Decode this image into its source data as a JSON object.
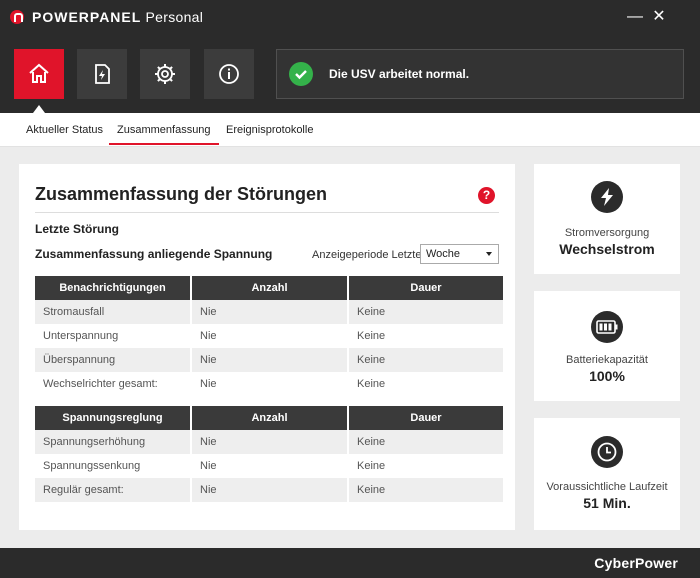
{
  "window": {
    "title_brand": "POWERPANEL",
    "title_edition": "Personal",
    "minimize_label": "—",
    "close_label": "✕"
  },
  "nav": {
    "buttons": [
      {
        "icon": "home-icon",
        "active": true
      },
      {
        "icon": "power-document-icon",
        "active": false
      },
      {
        "icon": "gear-icon",
        "active": false
      },
      {
        "icon": "info-icon",
        "active": false
      }
    ],
    "status_text": "Die USV arbeitet normal.",
    "status_color": "#34b24a"
  },
  "tabs": [
    {
      "label": "Aktueller Status",
      "active": false
    },
    {
      "label": "Zusammenfassung",
      "active": true
    },
    {
      "label": "Ereignisprotokolle",
      "active": false
    }
  ],
  "main": {
    "title": "Zusammenfassung der Störungen",
    "help_label": "?",
    "last_fault_label": "Letzte Störung",
    "voltage_summary_label": "Zusammenfassung anliegende Spannung",
    "period_label": "Anzeigeperiode Letzte",
    "period_value": "Woche",
    "notifications_table": {
      "headers": [
        "Benachrichtigungen",
        "Anzahl",
        "Dauer"
      ],
      "rows": [
        [
          "Stromausfall",
          "Nie",
          "Keine"
        ],
        [
          "Unterspannung",
          "Nie",
          "Keine"
        ],
        [
          "Überspannung",
          "Nie",
          "Keine"
        ],
        [
          "Wechselrichter gesamt:",
          "Nie",
          "Keine"
        ]
      ]
    },
    "regulation_table": {
      "headers": [
        "Spannungsreglung",
        "Anzahl",
        "Dauer"
      ],
      "rows": [
        [
          "Spannungserhöhung",
          "Nie",
          "Keine"
        ],
        [
          "Spannungssenkung",
          "Nie",
          "Keine"
        ],
        [
          "Regulär gesamt:",
          "Nie",
          "Keine"
        ]
      ]
    }
  },
  "cards": [
    {
      "icon": "lightning-icon",
      "label": "Stromversorgung",
      "value": "Wechselstrom"
    },
    {
      "icon": "battery-icon",
      "label": "Batteriekapazität",
      "value": "100%"
    },
    {
      "icon": "clock-icon",
      "label": "Voraussichtliche Laufzeit",
      "value": "51 Min."
    }
  ],
  "footer": {
    "brand": "CyberPower"
  },
  "colors": {
    "accent": "#e0142a",
    "dark": "#2b2b2b"
  }
}
